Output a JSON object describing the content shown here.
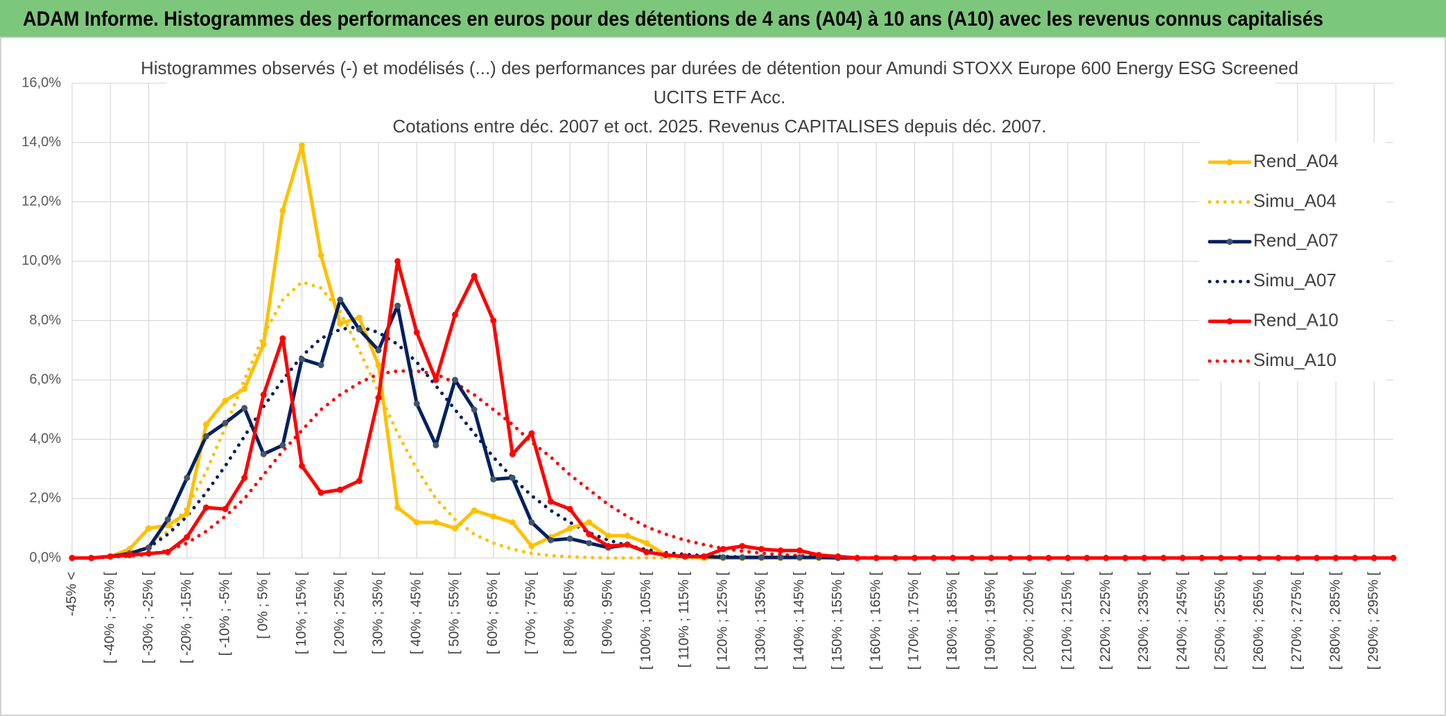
{
  "header": {
    "title": "ADAM Informe. Histogrammes des performances en euros pour des détentions de 4 ans (A04) à 10 ans (A10) avec les revenus connus capitalisés"
  },
  "chart_data": {
    "type": "line",
    "title": [
      "Histogrammes observés (-) et modélisés (...) des performances par durées de détention pour Amundi STOXX Europe 600 Energy ESG Screened",
      "UCITS ETF Acc.",
      "Cotations entre déc. 2007 et oct. 2025. Revenus CAPITALISES depuis déc. 2007."
    ],
    "categories": [
      "-45% <",
      null,
      "[ -40% ; -35% [",
      null,
      "[ -30% ; -25% [",
      null,
      "[ -20% ; -15% [",
      null,
      "[ -10% ; -5% [",
      null,
      "[ 0% ; 5% [",
      null,
      "[ 10% ; 15% [",
      null,
      "[ 20% ; 25% [",
      null,
      "[ 30% ; 35% [",
      null,
      "[ 40% ; 45% [",
      null,
      "[ 50% ; 55% [",
      null,
      "[ 60% ; 65% [",
      null,
      "[ 70% ; 75% [",
      null,
      "[ 80% ; 85% [",
      null,
      "[ 90% ; 95% [",
      null,
      "[ 100% ; 105% [",
      null,
      "[ 110% ; 115% [",
      null,
      "[ 120% ; 125% [",
      null,
      "[ 130% ; 135% [",
      null,
      "[ 140% ; 145% [",
      null,
      "[ 150% ; 155% [",
      null,
      "[ 160% ; 165% [",
      null,
      "[ 170% ; 175% [",
      null,
      "[ 180% ; 185% [",
      null,
      "[ 190% ; 195% [",
      null,
      "[ 200% ; 205% [",
      null,
      "[ 210% ; 215% [",
      null,
      "[ 220% ; 225% [",
      null,
      "[ 230% ; 235% [",
      null,
      "[ 240% ; 245% [",
      null,
      "[ 250% ; 255% [",
      null,
      "[ 260% ; 265% [",
      null,
      "[ 270% ; 275% [",
      null,
      "[ 280% ; 285% [",
      null,
      "[ 290% ; 295% [",
      null
    ],
    "ylim": [
      0,
      16
    ],
    "yticks": [
      {
        "value": 0,
        "label": "0,0%"
      },
      {
        "value": 2,
        "label": "2,0%"
      },
      {
        "value": 4,
        "label": "4,0%"
      },
      {
        "value": 6,
        "label": "6,0%"
      },
      {
        "value": 8,
        "label": "8,0%"
      },
      {
        "value": 10,
        "label": "10,0%"
      },
      {
        "value": 12,
        "label": "12,0%"
      },
      {
        "value": 14,
        "label": "14,0%"
      },
      {
        "value": 16,
        "label": "16,0%"
      }
    ],
    "grid": true,
    "legend": "right",
    "series": [
      {
        "name": "Rend_A04",
        "color": "#ffc000",
        "style": "solid",
        "values": [
          0,
          0,
          0.05,
          0.3,
          1.0,
          1.1,
          1.5,
          4.5,
          5.3,
          5.7,
          7.2,
          11.7,
          13.9,
          10.2,
          7.9,
          8.1,
          6.5,
          1.7,
          1.2,
          1.2,
          1.0,
          1.6,
          1.4,
          1.2,
          0.4,
          0.7,
          1.0,
          1.2,
          0.75,
          0.75,
          0.5,
          0.1,
          0.05,
          0,
          0,
          0,
          0,
          0,
          0,
          0,
          0,
          0,
          0,
          0,
          0,
          0,
          0,
          0,
          0,
          0,
          0,
          0,
          0,
          0,
          0,
          0,
          0,
          0,
          0,
          0,
          0,
          0,
          0,
          0,
          0,
          0,
          0,
          0,
          0,
          0
        ]
      },
      {
        "name": "Simu_A04",
        "color": "#ffc000",
        "style": "dotted",
        "values": [
          0,
          0,
          0.05,
          0.15,
          0.4,
          0.9,
          1.7,
          2.9,
          4.4,
          6.0,
          7.5,
          8.7,
          9.3,
          9.1,
          8.3,
          7.0,
          5.6,
          4.2,
          3.0,
          2.0,
          1.3,
          0.8,
          0.5,
          0.3,
          0.15,
          0.08,
          0.04,
          0.02,
          0,
          0,
          0,
          0,
          0,
          0,
          0,
          0,
          0,
          0,
          0,
          0,
          0,
          0,
          0,
          0,
          0,
          0,
          0,
          0,
          0,
          0,
          0,
          0,
          0,
          0,
          0,
          0,
          0,
          0,
          0,
          0,
          0,
          0,
          0,
          0,
          0,
          0,
          0,
          0,
          0,
          0
        ]
      },
      {
        "name": "Rend_A07",
        "color": "#002060",
        "style": "solid",
        "values": [
          0,
          0,
          0.05,
          0.15,
          0.35,
          1.3,
          2.7,
          4.1,
          4.55,
          5.05,
          3.5,
          3.8,
          6.7,
          6.5,
          8.7,
          7.7,
          7.0,
          8.5,
          5.2,
          3.8,
          6.0,
          5.0,
          2.65,
          2.7,
          1.2,
          0.6,
          0.65,
          0.5,
          0.35,
          0.45,
          0.2,
          0.1,
          0.05,
          0.05,
          0.02,
          0.02,
          0.02,
          0.02,
          0.02,
          0.02,
          0,
          0,
          0,
          0,
          0,
          0,
          0,
          0,
          0,
          0,
          0,
          0,
          0,
          0,
          0,
          0,
          0,
          0,
          0,
          0,
          0,
          0,
          0,
          0,
          0,
          0,
          0,
          0,
          0,
          0
        ]
      },
      {
        "name": "Simu_A07",
        "color": "#002060",
        "style": "dotted",
        "values": [
          0,
          0,
          0.05,
          0.15,
          0.35,
          0.8,
          1.4,
          2.2,
          3.1,
          4.1,
          5.1,
          6.0,
          6.8,
          7.4,
          7.7,
          7.8,
          7.6,
          7.2,
          6.6,
          5.8,
          5.0,
          4.2,
          3.4,
          2.7,
          2.1,
          1.6,
          1.2,
          0.85,
          0.6,
          0.42,
          0.28,
          0.18,
          0.12,
          0.08,
          0.05,
          0.03,
          0.02,
          0.01,
          0,
          0,
          0,
          0,
          0,
          0,
          0,
          0,
          0,
          0,
          0,
          0,
          0,
          0,
          0,
          0,
          0,
          0,
          0,
          0,
          0,
          0,
          0,
          0,
          0,
          0,
          0,
          0,
          0,
          0,
          0,
          0
        ]
      },
      {
        "name": "Rend_A10",
        "color": "#ff0000",
        "style": "solid",
        "values": [
          0,
          0,
          0.05,
          0.1,
          0.15,
          0.2,
          0.7,
          1.7,
          1.65,
          2.7,
          5.5,
          7.4,
          3.1,
          2.2,
          2.3,
          2.6,
          5.4,
          10.0,
          7.6,
          6.0,
          8.2,
          9.5,
          8.0,
          3.5,
          4.2,
          1.9,
          1.65,
          0.8,
          0.4,
          0.45,
          0.2,
          0.1,
          0.05,
          0.05,
          0.3,
          0.4,
          0.3,
          0.25,
          0.25,
          0.1,
          0.05,
          0,
          0,
          0,
          0,
          0,
          0,
          0,
          0,
          0,
          0,
          0,
          0,
          0,
          0,
          0,
          0,
          0,
          0,
          0,
          0,
          0,
          0,
          0,
          0,
          0,
          0,
          0,
          0,
          0
        ]
      },
      {
        "name": "Simu_A10",
        "color": "#ff0000",
        "style": "dotted",
        "values": [
          0,
          0,
          0.03,
          0.06,
          0.12,
          0.25,
          0.5,
          0.9,
          1.4,
          2.0,
          2.8,
          3.6,
          4.3,
          5.0,
          5.5,
          5.9,
          6.2,
          6.3,
          6.3,
          6.2,
          5.9,
          5.5,
          5.0,
          4.5,
          3.9,
          3.4,
          2.8,
          2.3,
          1.8,
          1.4,
          1.05,
          0.8,
          0.6,
          0.45,
          0.32,
          0.23,
          0.16,
          0.11,
          0.08,
          0.05,
          0.03,
          0.02,
          0,
          0,
          0,
          0,
          0,
          0,
          0,
          0,
          0,
          0,
          0,
          0,
          0,
          0,
          0,
          0,
          0,
          0,
          0,
          0,
          0,
          0,
          0,
          0,
          0,
          0,
          0,
          0
        ]
      }
    ]
  }
}
